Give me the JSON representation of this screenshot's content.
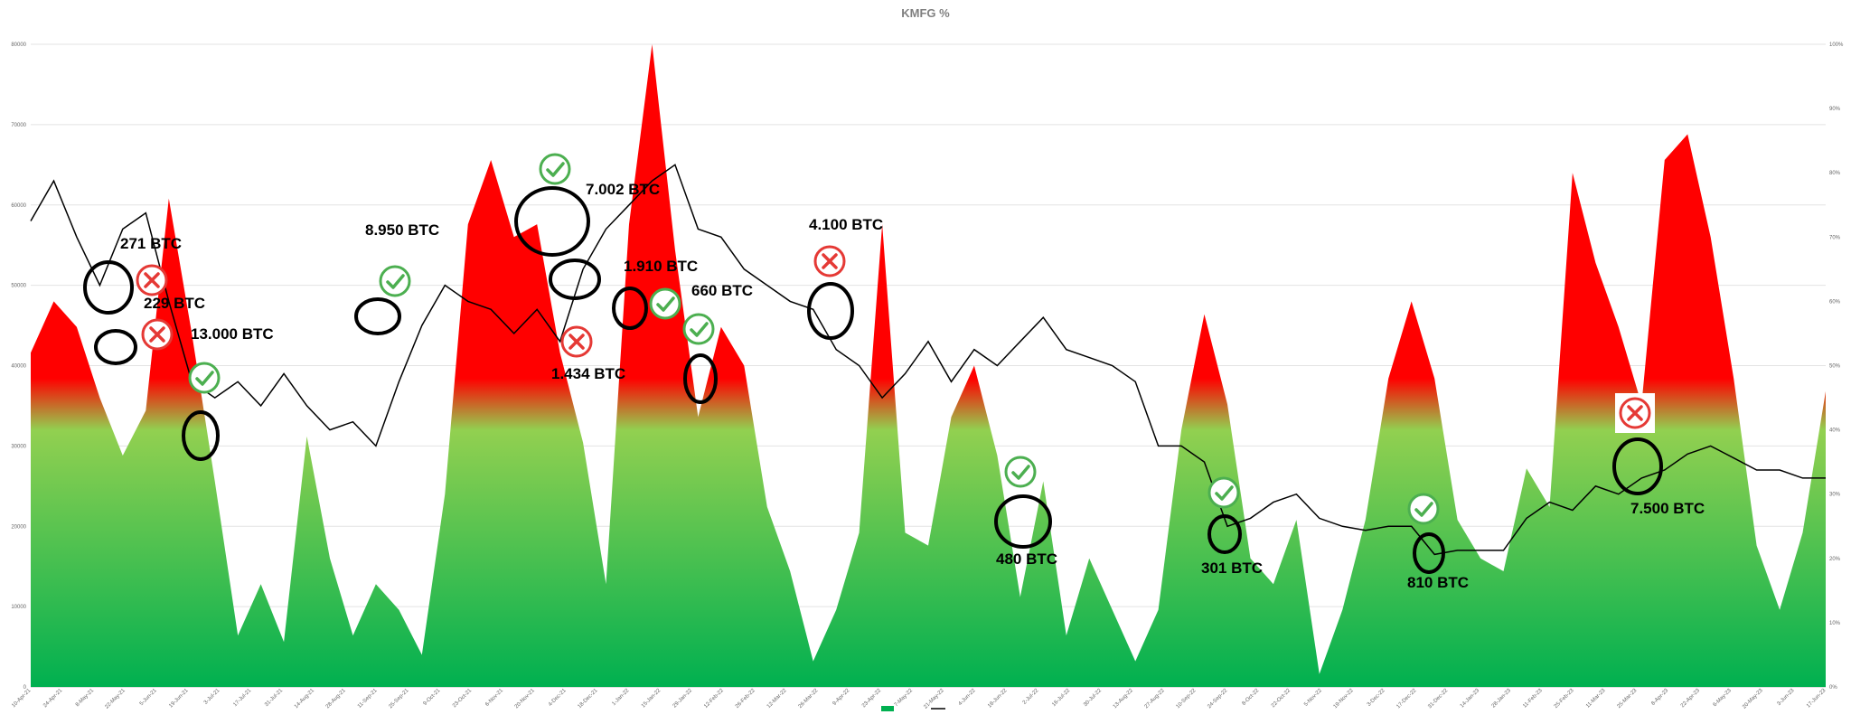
{
  "chart_data": {
    "type": "area",
    "title": "KMFG %",
    "ylim": [
      0,
      80000
    ],
    "ylim_right": [
      0,
      100
    ],
    "grid": true,
    "legend_position": "bottom",
    "left_ticks": [
      "0",
      "10000",
      "20000",
      "30000",
      "40000",
      "50000",
      "60000",
      "70000",
      "80000"
    ],
    "right_ticks": [
      "0%",
      "10%",
      "20%",
      "30%",
      "40%",
      "50%",
      "60%",
      "70%",
      "80%",
      "90%",
      "100%"
    ],
    "x_labels": [
      "10-Apr-21",
      "24-Apr-21",
      "8-May-21",
      "22-May-21",
      "5-Jun-21",
      "19-Jun-21",
      "3-Jul-21",
      "17-Jul-21",
      "31-Jul-21",
      "14-Aug-21",
      "28-Aug-21",
      "11-Sep-21",
      "25-Sep-21",
      "9-Oct-21",
      "23-Oct-21",
      "6-Nov-21",
      "20-Nov-21",
      "4-Dec-21",
      "18-Dec-21",
      "1-Jan-22",
      "15-Jan-22",
      "29-Jan-22",
      "12-Feb-22",
      "26-Feb-22",
      "12-Mar-22",
      "26-Mar-22",
      "9-Apr-22",
      "23-Apr-22",
      "7-May-22",
      "21-May-22",
      "4-Jun-22",
      "18-Jun-22",
      "2-Jul-22",
      "16-Jul-22",
      "30-Jul-22",
      "13-Aug-22",
      "27-Aug-22",
      "10-Sep-22",
      "24-Sep-22",
      "8-Oct-22",
      "22-Oct-22",
      "5-Nov-22",
      "19-Nov-22",
      "3-Dec-22",
      "17-Dec-22",
      "31-Dec-22",
      "14-Jan-23",
      "28-Jan-23",
      "11-Feb-23",
      "25-Feb-23",
      "11-Mar-23",
      "25-Mar-23",
      "8-Apr-23",
      "22-Apr-23",
      "6-May-23",
      "20-May-23",
      "3-Jun-23",
      "17-Jun-23"
    ],
    "series": [
      {
        "name": "",
        "axis": "right",
        "color_low": "#00b050",
        "color_mid": "#92d050",
        "color_high": "#ff0000",
        "points": [
          [
            0,
            52
          ],
          [
            1,
            60
          ],
          [
            2,
            56
          ],
          [
            3,
            45
          ],
          [
            4,
            36
          ],
          [
            5,
            43
          ],
          [
            6,
            76
          ],
          [
            7,
            55
          ],
          [
            8,
            32
          ],
          [
            9,
            8
          ],
          [
            10,
            16
          ],
          [
            11,
            7
          ],
          [
            12,
            39
          ],
          [
            13,
            20
          ],
          [
            14,
            8
          ],
          [
            15,
            16
          ],
          [
            16,
            12
          ],
          [
            17,
            5
          ],
          [
            18,
            30
          ],
          [
            19,
            72
          ],
          [
            20,
            82
          ],
          [
            21,
            70
          ],
          [
            22,
            72
          ],
          [
            23,
            52
          ],
          [
            24,
            38
          ],
          [
            25,
            16
          ],
          [
            26,
            72
          ],
          [
            27,
            100
          ],
          [
            28,
            68
          ],
          [
            29,
            42
          ],
          [
            30,
            56
          ],
          [
            31,
            50
          ],
          [
            32,
            28
          ],
          [
            33,
            18
          ],
          [
            34,
            4
          ],
          [
            35,
            12
          ],
          [
            36,
            24
          ],
          [
            37,
            72
          ],
          [
            38,
            24
          ],
          [
            39,
            22
          ],
          [
            40,
            42
          ],
          [
            41,
            50
          ],
          [
            42,
            36
          ],
          [
            43,
            14
          ],
          [
            44,
            32
          ],
          [
            45,
            8
          ],
          [
            46,
            20
          ],
          [
            47,
            12
          ],
          [
            48,
            4
          ],
          [
            49,
            12
          ],
          [
            50,
            40
          ],
          [
            51,
            58
          ],
          [
            52,
            44
          ],
          [
            53,
            20
          ],
          [
            54,
            16
          ],
          [
            55,
            26
          ],
          [
            56,
            2
          ],
          [
            57,
            12
          ],
          [
            58,
            26
          ],
          [
            59,
            48
          ],
          [
            60,
            60
          ],
          [
            61,
            48
          ],
          [
            62,
            26
          ],
          [
            63,
            20
          ],
          [
            64,
            18
          ],
          [
            65,
            34
          ],
          [
            66,
            28
          ],
          [
            67,
            80
          ],
          [
            68,
            66
          ],
          [
            69,
            56
          ],
          [
            70,
            44
          ],
          [
            71,
            82
          ],
          [
            72,
            86
          ],
          [
            73,
            70
          ],
          [
            74,
            48
          ],
          [
            75,
            22
          ],
          [
            76,
            12
          ],
          [
            77,
            24
          ],
          [
            78,
            46
          ]
        ]
      },
      {
        "name": "",
        "axis": "left",
        "color": "#000000",
        "points": [
          [
            0,
            58000
          ],
          [
            1,
            63000
          ],
          [
            2,
            56000
          ],
          [
            3,
            50000
          ],
          [
            4,
            57000
          ],
          [
            5,
            59000
          ],
          [
            6,
            48000
          ],
          [
            7,
            38000
          ],
          [
            8,
            36000
          ],
          [
            9,
            38000
          ],
          [
            10,
            35000
          ],
          [
            11,
            39000
          ],
          [
            12,
            35000
          ],
          [
            13,
            32000
          ],
          [
            14,
            33000
          ],
          [
            15,
            30000
          ],
          [
            16,
            38000
          ],
          [
            17,
            45000
          ],
          [
            18,
            50000
          ],
          [
            19,
            48000
          ],
          [
            20,
            47000
          ],
          [
            21,
            44000
          ],
          [
            22,
            47000
          ],
          [
            23,
            43000
          ],
          [
            24,
            52000
          ],
          [
            25,
            57000
          ],
          [
            26,
            60000
          ],
          [
            27,
            63000
          ],
          [
            28,
            65000
          ],
          [
            29,
            57000
          ],
          [
            30,
            56000
          ],
          [
            31,
            52000
          ],
          [
            32,
            50000
          ],
          [
            33,
            48000
          ],
          [
            34,
            47000
          ],
          [
            35,
            42000
          ],
          [
            36,
            40000
          ],
          [
            37,
            36000
          ],
          [
            38,
            39000
          ],
          [
            39,
            43000
          ],
          [
            40,
            38000
          ],
          [
            41,
            42000
          ],
          [
            42,
            40000
          ],
          [
            43,
            43000
          ],
          [
            44,
            46000
          ],
          [
            45,
            42000
          ],
          [
            46,
            41000
          ],
          [
            47,
            40000
          ],
          [
            48,
            38000
          ],
          [
            49,
            30000
          ],
          [
            50,
            30000
          ],
          [
            51,
            28000
          ],
          [
            52,
            20000
          ],
          [
            53,
            21000
          ],
          [
            54,
            23000
          ],
          [
            55,
            24000
          ],
          [
            56,
            21000
          ],
          [
            57,
            20000
          ],
          [
            58,
            19500
          ],
          [
            59,
            20000
          ],
          [
            60,
            20000
          ],
          [
            61,
            16500
          ],
          [
            62,
            17000
          ],
          [
            63,
            17000
          ],
          [
            64,
            17000
          ],
          [
            65,
            21000
          ],
          [
            66,
            23000
          ],
          [
            67,
            22000
          ],
          [
            68,
            25000
          ],
          [
            69,
            24000
          ],
          [
            70,
            26000
          ],
          [
            71,
            27000
          ],
          [
            72,
            29000
          ],
          [
            73,
            30000
          ],
          [
            74,
            28500
          ],
          [
            75,
            27000
          ],
          [
            76,
            27000
          ],
          [
            77,
            26000
          ],
          [
            78,
            26000
          ]
        ]
      }
    ]
  },
  "annotations": [
    {
      "label": "271 BTC",
      "mark": "cross"
    },
    {
      "label": "229 BTC",
      "mark": "cross"
    },
    {
      "label": "13.000 BTC",
      "mark": "check"
    },
    {
      "label": "8.950 BTC",
      "mark": "check"
    },
    {
      "label": "7.002 BTC",
      "mark": "check"
    },
    {
      "label": "1.434 BTC",
      "mark": "cross"
    },
    {
      "label": "1.910 BTC",
      "mark": "check"
    },
    {
      "label": "660 BTC",
      "mark": "check"
    },
    {
      "label": "4.100 BTC",
      "mark": "cross"
    },
    {
      "label": "480 BTC",
      "mark": "check"
    },
    {
      "label": "301 BTC",
      "mark": "check"
    },
    {
      "label": "810 BTC",
      "mark": "check"
    },
    {
      "label": "7.500 BTC",
      "mark": "cross"
    }
  ],
  "colors": {
    "check": "#4caf50",
    "cross": "#e53935",
    "grid": "#e3e3e3",
    "line": "#000000"
  },
  "icons": {
    "check": "check-circle-icon",
    "cross": "cross-circle-icon"
  }
}
